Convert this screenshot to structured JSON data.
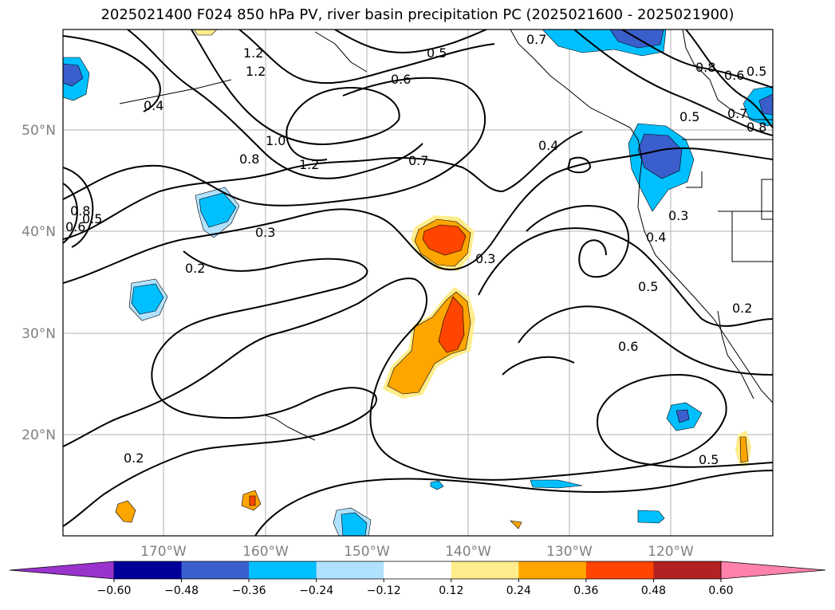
{
  "title": "2025021400 F024 850 hPa PV, river basin precipitation PC (2025021600 - 2025021900)",
  "lon_labels": [
    "170°W",
    "160°W",
    "150°W",
    "140°W",
    "130°W",
    "120°W"
  ],
  "lat_labels": [
    "50°N",
    "40°N",
    "30°N",
    "20°N"
  ],
  "contour_labels": [
    "0.5",
    "1.2",
    "1.2",
    "0.4",
    "0.6",
    "0.7",
    "0.8",
    "0.6",
    "0.5",
    "0.8",
    "0.5",
    "0.7",
    "0.8",
    "1.0",
    "0.8",
    "1.2",
    "0.7",
    "0.4",
    "0.6",
    "0.5",
    "0.3",
    "0.3",
    "0.3",
    "0.4",
    "0.2",
    "0.5",
    "0.2",
    "0.6",
    "0.2",
    "0.5"
  ],
  "colorbar": {
    "ticks": [
      "−0.60",
      "−0.48",
      "−0.36",
      "−0.24",
      "−0.12",
      "0.12",
      "0.24",
      "0.36",
      "0.48",
      "0.60"
    ],
    "colors": [
      "#9933cc",
      "#000099",
      "#3a5fcd",
      "#00bfff",
      "#b0e2ff",
      "#ffffff",
      "#ffec8b",
      "#ffa500",
      "#ff4500",
      "#b22222",
      "#ff82ab"
    ]
  }
}
